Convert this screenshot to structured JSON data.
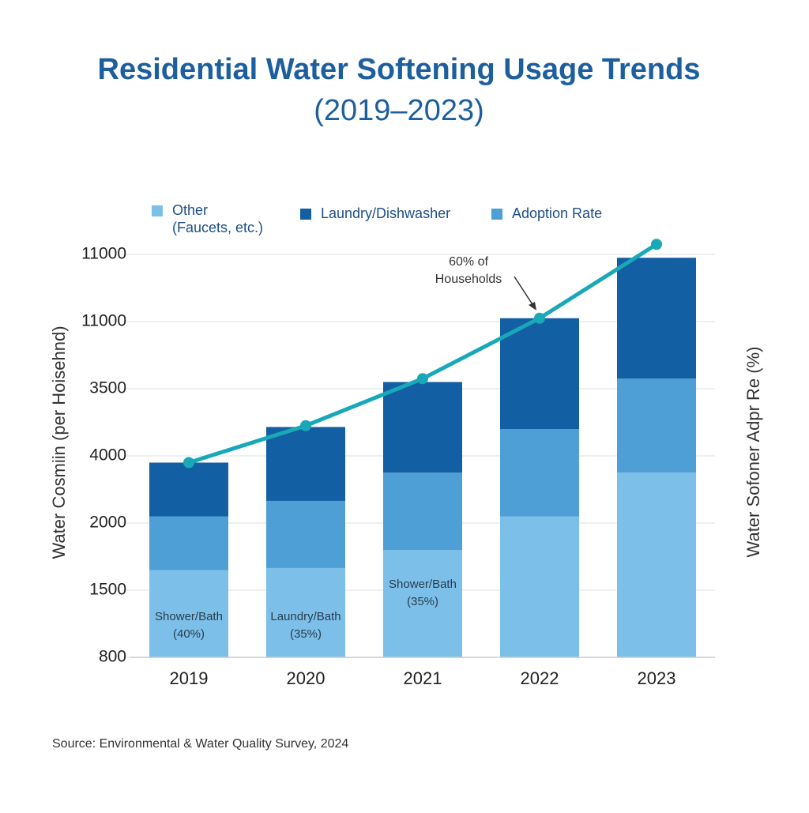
{
  "chart_data": {
    "type": "bar",
    "title": "Residential Water Softening Usage Trends",
    "subtitle": "(2019–2023)",
    "y_label": "Water Cosmiin (per Hoisehnd)",
    "y2_label": "Water Sofoner Adpr Re (%)",
    "source": "Source: Environmental & Water Quality Survey, 2024",
    "categories": [
      "2019",
      "2020",
      "2021",
      "2022",
      "2023"
    ],
    "stacked": true,
    "grid": true,
    "ylim": [
      0,
      6
    ],
    "yticks": [
      {
        "value": 0,
        "label": "800"
      },
      {
        "value": 1,
        "label": "1500"
      },
      {
        "value": 2,
        "label": "2000"
      },
      {
        "value": 3,
        "label": "4000"
      },
      {
        "value": 4,
        "label": "3500"
      },
      {
        "value": 5,
        "label": "11000"
      },
      {
        "value": 6,
        "label": "11000"
      }
    ],
    "y2lim": [
      0,
      6
    ],
    "series": [
      {
        "name": "Other (Faucets, etc.)",
        "color": "#7cc0ea",
        "values": [
          1.3,
          1.33,
          1.6,
          2.1,
          2.75
        ]
      },
      {
        "name": "Adoption Rate",
        "color": "#4e9fd6",
        "values": [
          0.8,
          1.0,
          1.15,
          1.3,
          1.4
        ]
      },
      {
        "name": "Laundry/Dishwasher",
        "color": "#135fa3",
        "values": [
          0.8,
          1.1,
          1.35,
          1.65,
          1.8
        ]
      },
      {
        "type": "line",
        "axis": "y2",
        "color": "#19a8b8",
        "values": [
          2.9,
          3.45,
          4.15,
          5.05,
          6.15
        ]
      }
    ],
    "annotations": [
      {
        "category": "2019",
        "text": [
          "Shower/Bath",
          "(40%)"
        ]
      },
      {
        "category": "2020",
        "text": [
          "Laundry/Bath",
          "(35%)"
        ]
      },
      {
        "category": "2021",
        "text": [
          "Shower/Bath",
          "(35%)"
        ]
      },
      {
        "category": "2022",
        "text": [
          "60% of",
          "Households"
        ]
      }
    ]
  }
}
